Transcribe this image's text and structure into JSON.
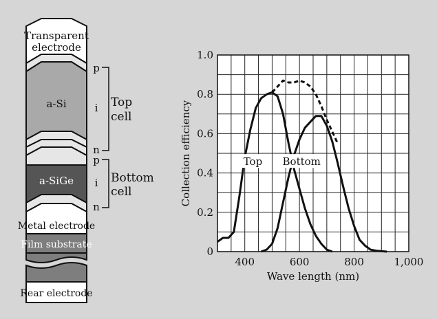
{
  "stack": {
    "layers": {
      "transparent_electrode": [
        "Transparent",
        "electrode"
      ],
      "a_si": "a-Si",
      "a_sige": "a-SiGe",
      "metal_electrode": "Metal electrode",
      "film_substrate": "Film substrate",
      "rear_electrode": "Rear electrode"
    },
    "letters": {
      "top_p": "p",
      "top_i": "i",
      "top_n": "n",
      "bottom_p": "p",
      "bottom_i": "i",
      "bottom_n": "n"
    },
    "brackets": {
      "top_cell": [
        "Top",
        "cell"
      ],
      "bottom_cell": [
        "Bottom",
        "cell"
      ]
    },
    "colors": {
      "transparent": "#ffffff",
      "thin_layer": "#e6e6e6",
      "a_si": "#a9a9a9",
      "a_sige": "#555555",
      "metal": "#ffffff",
      "film": "#7e7e7e",
      "rear": "#ffffff"
    }
  },
  "chart_data": {
    "type": "line",
    "xlabel": "Wave length (nm)",
    "ylabel": "Collection efficiency",
    "xlim": [
      300,
      1000
    ],
    "ylim": [
      0,
      1.0
    ],
    "xticks": [
      400,
      600,
      800,
      1000
    ],
    "xtick_labels": [
      "400",
      "600",
      "800",
      "1,000"
    ],
    "yticks": [
      0,
      0.2,
      0.4,
      0.6,
      0.8,
      1.0
    ],
    "ytick_labels": [
      "0",
      "0.2",
      "0.4",
      "0.6",
      "0.8",
      "1.0"
    ],
    "grid": true,
    "series": [
      {
        "name": "Top",
        "style": "solid",
        "x": [
          300,
          320,
          340,
          360,
          380,
          400,
          420,
          440,
          460,
          480,
          500,
          520,
          540,
          560,
          580,
          600,
          620,
          640,
          660,
          680,
          700,
          720
        ],
        "y": [
          0.05,
          0.07,
          0.07,
          0.1,
          0.28,
          0.48,
          0.62,
          0.73,
          0.78,
          0.8,
          0.81,
          0.79,
          0.7,
          0.55,
          0.42,
          0.32,
          0.22,
          0.14,
          0.08,
          0.04,
          0.01,
          0.0
        ]
      },
      {
        "name": "Bottom",
        "style": "solid",
        "x": [
          460,
          480,
          500,
          520,
          540,
          560,
          580,
          600,
          620,
          640,
          660,
          680,
          700,
          720,
          740,
          760,
          780,
          800,
          820,
          840,
          860,
          880,
          900,
          920
        ],
        "y": [
          0.0,
          0.01,
          0.04,
          0.12,
          0.25,
          0.38,
          0.49,
          0.57,
          0.63,
          0.66,
          0.69,
          0.69,
          0.64,
          0.56,
          0.45,
          0.33,
          0.22,
          0.13,
          0.06,
          0.03,
          0.01,
          0.005,
          0.002,
          0.0
        ]
      },
      {
        "name": "",
        "style": "dashed",
        "x": [
          500,
          520,
          540,
          560,
          580,
          600,
          620,
          640,
          660,
          680,
          700,
          720,
          740
        ],
        "y": [
          0.81,
          0.84,
          0.87,
          0.86,
          0.86,
          0.87,
          0.86,
          0.84,
          0.8,
          0.74,
          0.67,
          0.61,
          0.55
        ]
      }
    ],
    "annotations": [
      {
        "text": "Top",
        "x": 395,
        "y": 0.44
      },
      {
        "text": "Bottom",
        "x": 538,
        "y": 0.44
      }
    ]
  }
}
